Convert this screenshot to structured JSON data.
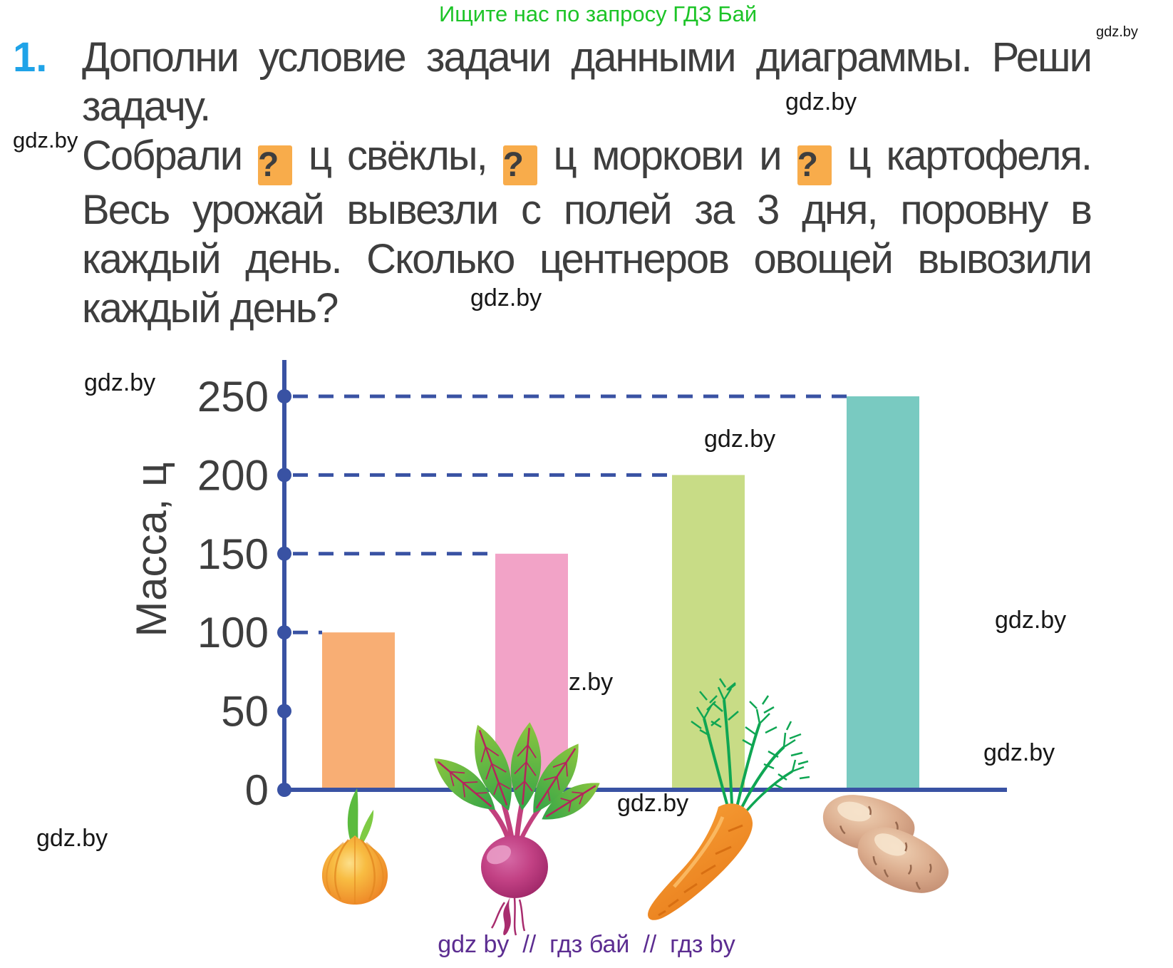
{
  "promo_header": {
    "text": "Ищите нас по запросу ГДЗ Бай",
    "color": "#1DC428"
  },
  "watermark": {
    "label": "gdz.by"
  },
  "problem": {
    "number": "1.",
    "number_color": "#1FA3E8",
    "lines": [
      {
        "tokens": [
          {
            "t": "text",
            "v": "Дополни условие задачи данными диаграммы. Реши"
          }
        ],
        "justify": true
      },
      {
        "tokens": [
          {
            "t": "text",
            "v": "задачу."
          }
        ],
        "justify": false
      },
      {
        "tokens": [
          {
            "t": "text",
            "v": "Собрали "
          },
          {
            "t": "qbox",
            "v": "?"
          },
          {
            "t": "text",
            "v": " ц свёклы, "
          },
          {
            "t": "qbox",
            "v": "?"
          },
          {
            "t": "text",
            "v": " ц моркови и "
          },
          {
            "t": "qbox",
            "v": "?"
          },
          {
            "t": "text",
            "v": " ц картофеля."
          }
        ],
        "justify": true
      },
      {
        "tokens": [
          {
            "t": "text",
            "v": "Весь урожай вывезли с полей за 3 дня, поровну в"
          }
        ],
        "justify": true
      },
      {
        "tokens": [
          {
            "t": "text",
            "v": "каждый день. Сколько центнеров овощей вывозили"
          }
        ],
        "justify": true
      },
      {
        "tokens": [
          {
            "t": "text",
            "v": "каждый день?"
          }
        ],
        "justify": false
      }
    ]
  },
  "chart_data": {
    "type": "bar",
    "categories": [
      "лук",
      "свёкла",
      "морковь",
      "картофель"
    ],
    "values": [
      100,
      150,
      200,
      250
    ],
    "bar_colors": [
      "#F8AE74",
      "#F2A3C7",
      "#C8DC86",
      "#79CAC1"
    ],
    "ylabel": "Масса, ц",
    "yticks": [
      0,
      50,
      100,
      150,
      200,
      250
    ],
    "ylim": [
      0,
      250
    ],
    "axis_color": "#3952A3",
    "grid": "dashed leader lines from axis to each bar top",
    "legend": "none"
  },
  "footer": {
    "text": "gdz by  //  гдз бай  //  гдз by",
    "color": "#5C2D91"
  }
}
